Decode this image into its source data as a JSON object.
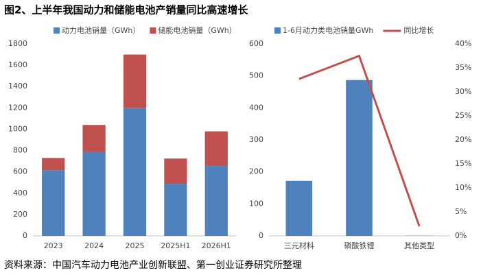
{
  "title": "图2、上半年我国动力和储能电池产销量同比高速增长",
  "source": "资料来源：中国汽车动力电池产业创新联盟、第一创业证券研究所整理",
  "chart_data": [
    {
      "type": "stacked_bar",
      "categories": [
        "2023",
        "2024",
        "2025",
        "2025H1",
        "2026H1"
      ],
      "series": [
        {
          "name": "动力电池销量（GWh）",
          "color": "#4f81bd",
          "values": [
            616,
            791,
            1200,
            488,
            662
          ]
        },
        {
          "name": "储能电池销量（GWh）",
          "color": "#c0504d",
          "values": [
            114,
            249,
            500,
            237,
            318
          ]
        }
      ],
      "ylim": [
        0,
        1800
      ],
      "yticks": [
        0,
        200,
        400,
        600,
        800,
        1000,
        1200,
        1400,
        1600,
        1800
      ],
      "grid": false
    },
    {
      "type": "bar_line",
      "categories": [
        "三元材料",
        "磷酸铁锂",
        "其他类型"
      ],
      "series": [
        {
          "name": "1-6月动力类电池销量GWh",
          "color": "#4f81bd",
          "values": [
            172,
            487,
            0.5
          ]
        },
        {
          "name": "同比增长",
          "color": "#c0504d",
          "values": [
            32.7,
            37.5,
            2
          ],
          "axis": "y2"
        }
      ],
      "ylim": [
        0,
        600
      ],
      "yticks": [
        0,
        100,
        200,
        300,
        400,
        500,
        600
      ],
      "y2lim": [
        0,
        40
      ],
      "y2ticks": [
        {
          "value": 0,
          "label": "0%"
        },
        {
          "value": 5,
          "label": "5%"
        },
        {
          "value": 10,
          "label": "10%"
        },
        {
          "value": 15,
          "label": "15%"
        },
        {
          "value": 20,
          "label": "20%"
        },
        {
          "value": 25,
          "label": "25%"
        },
        {
          "value": 30,
          "label": "30%"
        },
        {
          "value": 35,
          "label": "35%"
        },
        {
          "value": 40,
          "label": "40%"
        }
      ],
      "grid": false
    }
  ]
}
